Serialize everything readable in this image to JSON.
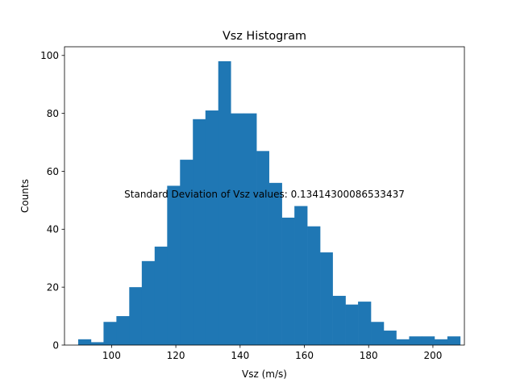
{
  "chart_data": {
    "type": "bar",
    "title": "Vsz Histogram",
    "xlabel": "Vsz (m/s)",
    "ylabel": "Counts",
    "annotation": "Standard Deviation of Vsz values: 0.13414300086533437",
    "xlim": [
      85.35,
      209.8
    ],
    "ylim": [
      0,
      103
    ],
    "x_ticks": [
      100,
      120,
      140,
      160,
      180,
      200
    ],
    "y_ticks": [
      0,
      20,
      40,
      60,
      80,
      100
    ],
    "bin_edges": [
      89.6,
      93.6,
      97.5,
      101.5,
      105.5,
      109.4,
      113.4,
      117.3,
      121.3,
      125.3,
      129.2,
      133.2,
      137.1,
      141.1,
      145.1,
      149.0,
      153.0,
      156.9,
      160.9,
      164.9,
      168.8,
      172.8,
      176.7,
      180.7,
      184.7,
      188.6,
      192.6,
      196.5,
      200.5,
      204.5
    ],
    "counts": [
      2,
      1,
      8,
      10,
      20,
      29,
      34,
      55,
      64,
      78,
      81,
      98,
      80,
      80,
      67,
      56,
      44,
      48,
      41,
      32,
      17,
      14,
      15,
      8,
      5,
      2,
      3,
      3,
      2,
      3
    ],
    "bar_color": "#1f77b4",
    "grid": false,
    "legend": "none"
  }
}
